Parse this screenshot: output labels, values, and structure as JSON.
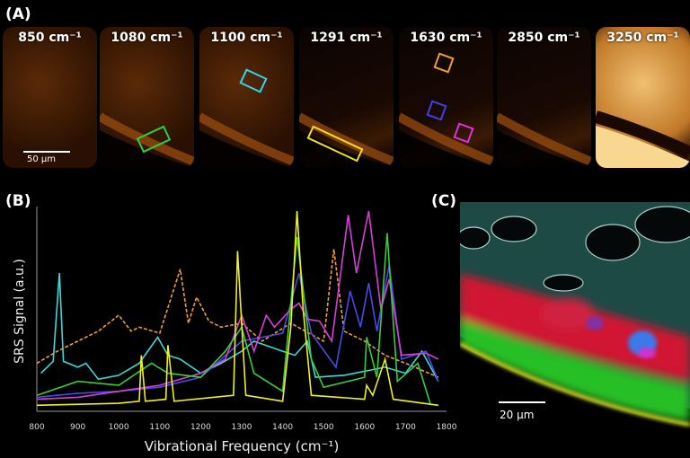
{
  "panels": {
    "a": "(A)",
    "b": "(B)",
    "c": "(C)"
  },
  "panel_a": {
    "tiles": [
      {
        "label": "850 cm⁻¹",
        "brightness": "medium"
      },
      {
        "label": "1080 cm⁻¹",
        "brightness": "medium",
        "roi": "#2ecc40"
      },
      {
        "label": "1100 cm⁻¹",
        "brightness": "medium",
        "roi": "#30d8e8"
      },
      {
        "label": "1291 cm⁻¹",
        "brightness": "low",
        "roi": "#f0e020"
      },
      {
        "label": "1630 cm⁻¹",
        "brightness": "low",
        "rois": [
          "#f0a030",
          "#4040e8",
          "#e030e0"
        ]
      },
      {
        "label": "2850 cm⁻¹",
        "brightness": "low"
      },
      {
        "label": "3250 cm⁻¹",
        "brightness": "high"
      }
    ],
    "scale_bar": "50 µm"
  },
  "chart_data": {
    "type": "line",
    "xlabel": "Vibrational Frequency (cm⁻¹)",
    "ylabel": "SRS Signal (a.u.)",
    "xlim": [
      800,
      1800
    ],
    "ylim": [
      0,
      100
    ],
    "xticks": [
      "800",
      "900",
      "1000",
      "1100",
      "1200",
      "1300",
      "1400",
      "1500",
      "1600",
      "1700",
      "1800"
    ],
    "grid": false,
    "series": [
      {
        "color": "#e8a040",
        "style": "dashed",
        "points": [
          [
            800,
            24
          ],
          [
            850,
            30
          ],
          [
            900,
            35
          ],
          [
            950,
            40
          ],
          [
            1000,
            48
          ],
          [
            1030,
            40
          ],
          [
            1050,
            42
          ],
          [
            1100,
            39
          ],
          [
            1150,
            71
          ],
          [
            1170,
            44
          ],
          [
            1190,
            57
          ],
          [
            1220,
            45
          ],
          [
            1250,
            42
          ],
          [
            1300,
            44
          ],
          [
            1350,
            35
          ],
          [
            1420,
            44
          ],
          [
            1500,
            35
          ],
          [
            1525,
            81
          ],
          [
            1550,
            40
          ],
          [
            1600,
            35
          ],
          [
            1650,
            28
          ],
          [
            1700,
            24
          ],
          [
            1780,
            17
          ]
        ]
      },
      {
        "color": "#3fd8d8",
        "style": "solid",
        "points": [
          [
            810,
            19
          ],
          [
            840,
            25
          ],
          [
            855,
            69
          ],
          [
            865,
            25
          ],
          [
            900,
            22
          ],
          [
            920,
            24
          ],
          [
            950,
            16
          ],
          [
            1000,
            18
          ],
          [
            1050,
            24
          ],
          [
            1095,
            37
          ],
          [
            1120,
            28
          ],
          [
            1150,
            26
          ],
          [
            1200,
            19
          ],
          [
            1250,
            24
          ],
          [
            1300,
            30
          ],
          [
            1330,
            35
          ],
          [
            1400,
            30
          ],
          [
            1430,
            28
          ],
          [
            1460,
            35
          ],
          [
            1480,
            17
          ],
          [
            1550,
            18
          ],
          [
            1650,
            22
          ],
          [
            1700,
            19
          ],
          [
            1740,
            30
          ],
          [
            1780,
            15
          ]
        ]
      },
      {
        "color": "#4a4ae8",
        "style": "solid",
        "points": [
          [
            800,
            7
          ],
          [
            900,
            9
          ],
          [
            1000,
            10
          ],
          [
            1100,
            12
          ],
          [
            1200,
            17
          ],
          [
            1300,
            35
          ],
          [
            1350,
            37
          ],
          [
            1400,
            39
          ],
          [
            1440,
            69
          ],
          [
            1470,
            39
          ],
          [
            1530,
            22
          ],
          [
            1565,
            60
          ],
          [
            1590,
            42
          ],
          [
            1610,
            64
          ],
          [
            1630,
            40
          ],
          [
            1660,
            73
          ],
          [
            1690,
            26
          ],
          [
            1750,
            30
          ],
          [
            1780,
            15
          ]
        ]
      },
      {
        "color": "#d83fd8",
        "style": "solid",
        "points": [
          [
            800,
            6
          ],
          [
            900,
            7
          ],
          [
            1000,
            10
          ],
          [
            1100,
            13
          ],
          [
            1200,
            19
          ],
          [
            1260,
            26
          ],
          [
            1300,
            48
          ],
          [
            1330,
            30
          ],
          [
            1360,
            48
          ],
          [
            1380,
            42
          ],
          [
            1420,
            51
          ],
          [
            1440,
            54
          ],
          [
            1460,
            46
          ],
          [
            1490,
            45
          ],
          [
            1520,
            35
          ],
          [
            1560,
            98
          ],
          [
            1580,
            69
          ],
          [
            1610,
            100
          ],
          [
            1640,
            51
          ],
          [
            1660,
            66
          ],
          [
            1690,
            28
          ],
          [
            1750,
            29
          ],
          [
            1780,
            26
          ]
        ]
      },
      {
        "color": "#3ccc3c",
        "style": "solid",
        "points": [
          [
            800,
            8
          ],
          [
            900,
            15
          ],
          [
            1000,
            13
          ],
          [
            1080,
            24
          ],
          [
            1120,
            19
          ],
          [
            1200,
            17
          ],
          [
            1260,
            30
          ],
          [
            1300,
            42
          ],
          [
            1330,
            19
          ],
          [
            1400,
            10
          ],
          [
            1435,
            87
          ],
          [
            1470,
            26
          ],
          [
            1500,
            12
          ],
          [
            1600,
            17
          ],
          [
            1605,
            37
          ],
          [
            1630,
            17
          ],
          [
            1655,
            89
          ],
          [
            1680,
            15
          ],
          [
            1730,
            24
          ],
          [
            1760,
            4
          ]
        ]
      },
      {
        "color": "#f0f020",
        "style": "solid",
        "points": [
          [
            800,
            3
          ],
          [
            1000,
            4
          ],
          [
            1050,
            5
          ],
          [
            1055,
            28
          ],
          [
            1065,
            5
          ],
          [
            1115,
            6
          ],
          [
            1120,
            33
          ],
          [
            1135,
            5
          ],
          [
            1280,
            8
          ],
          [
            1290,
            80
          ],
          [
            1310,
            8
          ],
          [
            1400,
            5
          ],
          [
            1420,
            42
          ],
          [
            1435,
            100
          ],
          [
            1450,
            51
          ],
          [
            1470,
            8
          ],
          [
            1600,
            6
          ],
          [
            1605,
            13
          ],
          [
            1620,
            8
          ],
          [
            1650,
            26
          ],
          [
            1670,
            6
          ],
          [
            1780,
            3
          ]
        ]
      }
    ]
  },
  "panel_c": {
    "scale_bar": "20 µm"
  }
}
